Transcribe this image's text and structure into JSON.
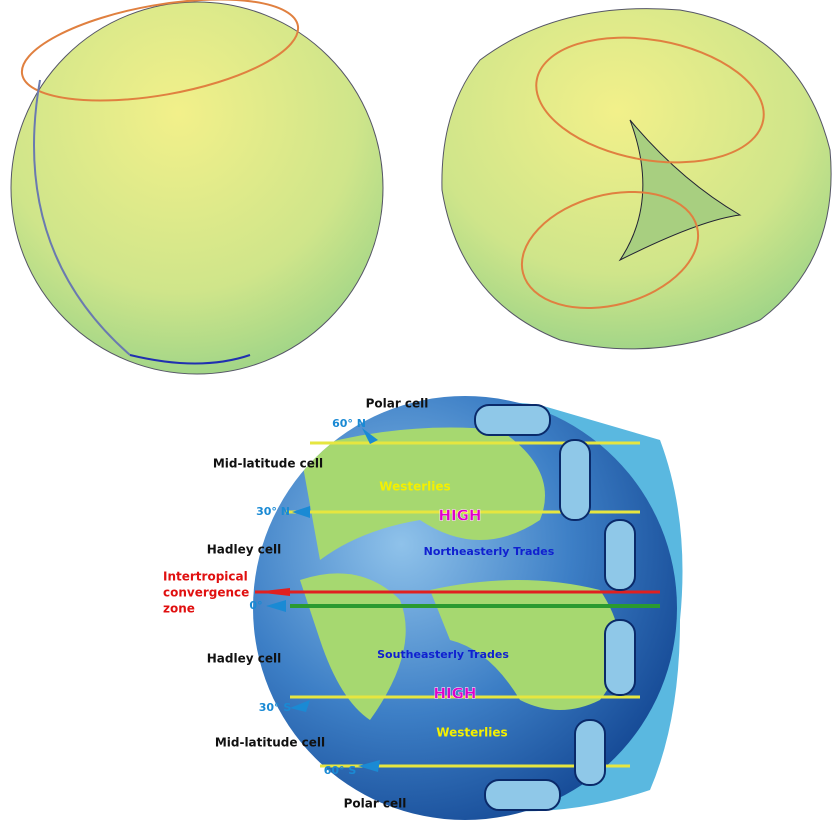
{
  "labels": {
    "polar_north": "Polar cell",
    "lat_60n": "60° N",
    "mid_north": "Mid-latitude cell",
    "westerlies_north": "Westerlies",
    "lat_30n": "30° N",
    "high_north": "HIGH",
    "hadley_north": "Hadley cell",
    "ne_trades": "Northeasterly Trades",
    "itcz": [
      "Intertropical",
      "convergence",
      "zone"
    ],
    "lat_0": "0°",
    "hadley_south": "Hadley cell",
    "se_trades": "Southeasterly Trades",
    "high_south": "HIGH",
    "lat_30s": "30° S",
    "mid_south": "Mid-latitude cell",
    "westerlies_south": "Westerlies",
    "lat_60s": "60° S",
    "polar_south": "Polar cell"
  }
}
